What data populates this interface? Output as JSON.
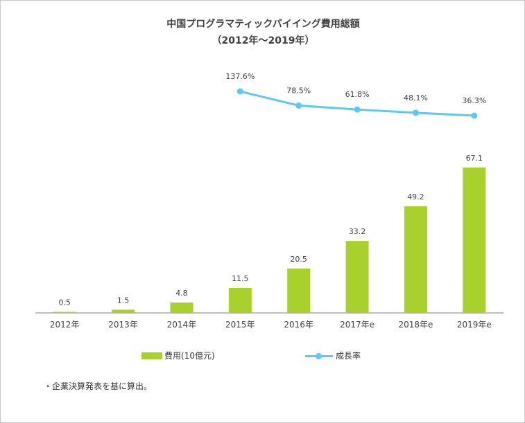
{
  "chart_data": {
    "type": "bar+line",
    "title_line1": "中国プログラマティックバイイング費用総額",
    "title_line2": "（2012年～2019年）",
    "categories": [
      "2012年",
      "2013年",
      "2014年",
      "2015年",
      "2016年",
      "2017年e",
      "2018年e",
      "2019年e"
    ],
    "series": [
      {
        "name": "費用(10億元)",
        "type": "bar",
        "values": [
          0.5,
          1.5,
          4.8,
          11.5,
          20.5,
          33.2,
          49.2,
          67.1
        ],
        "labels": [
          "0.5",
          "1.5",
          "4.8",
          "11.5",
          "20.5",
          "33.2",
          "49.2",
          "67.1"
        ],
        "color": "#a9d12e"
      },
      {
        "name": "成長率",
        "type": "line",
        "values": [
          null,
          null,
          null,
          137.6,
          78.5,
          61.8,
          48.1,
          36.3
        ],
        "labels": [
          null,
          null,
          null,
          "137.6%",
          "78.5%",
          "61.8%",
          "48.1%",
          "36.3%"
        ],
        "color": "#5bc8f5"
      }
    ],
    "legend_position": "bottom",
    "grid": false
  },
  "legend": {
    "bar_label": "費用(10億元)",
    "line_label": "成長率"
  },
  "note": "・企業決算発表を基に算出。"
}
